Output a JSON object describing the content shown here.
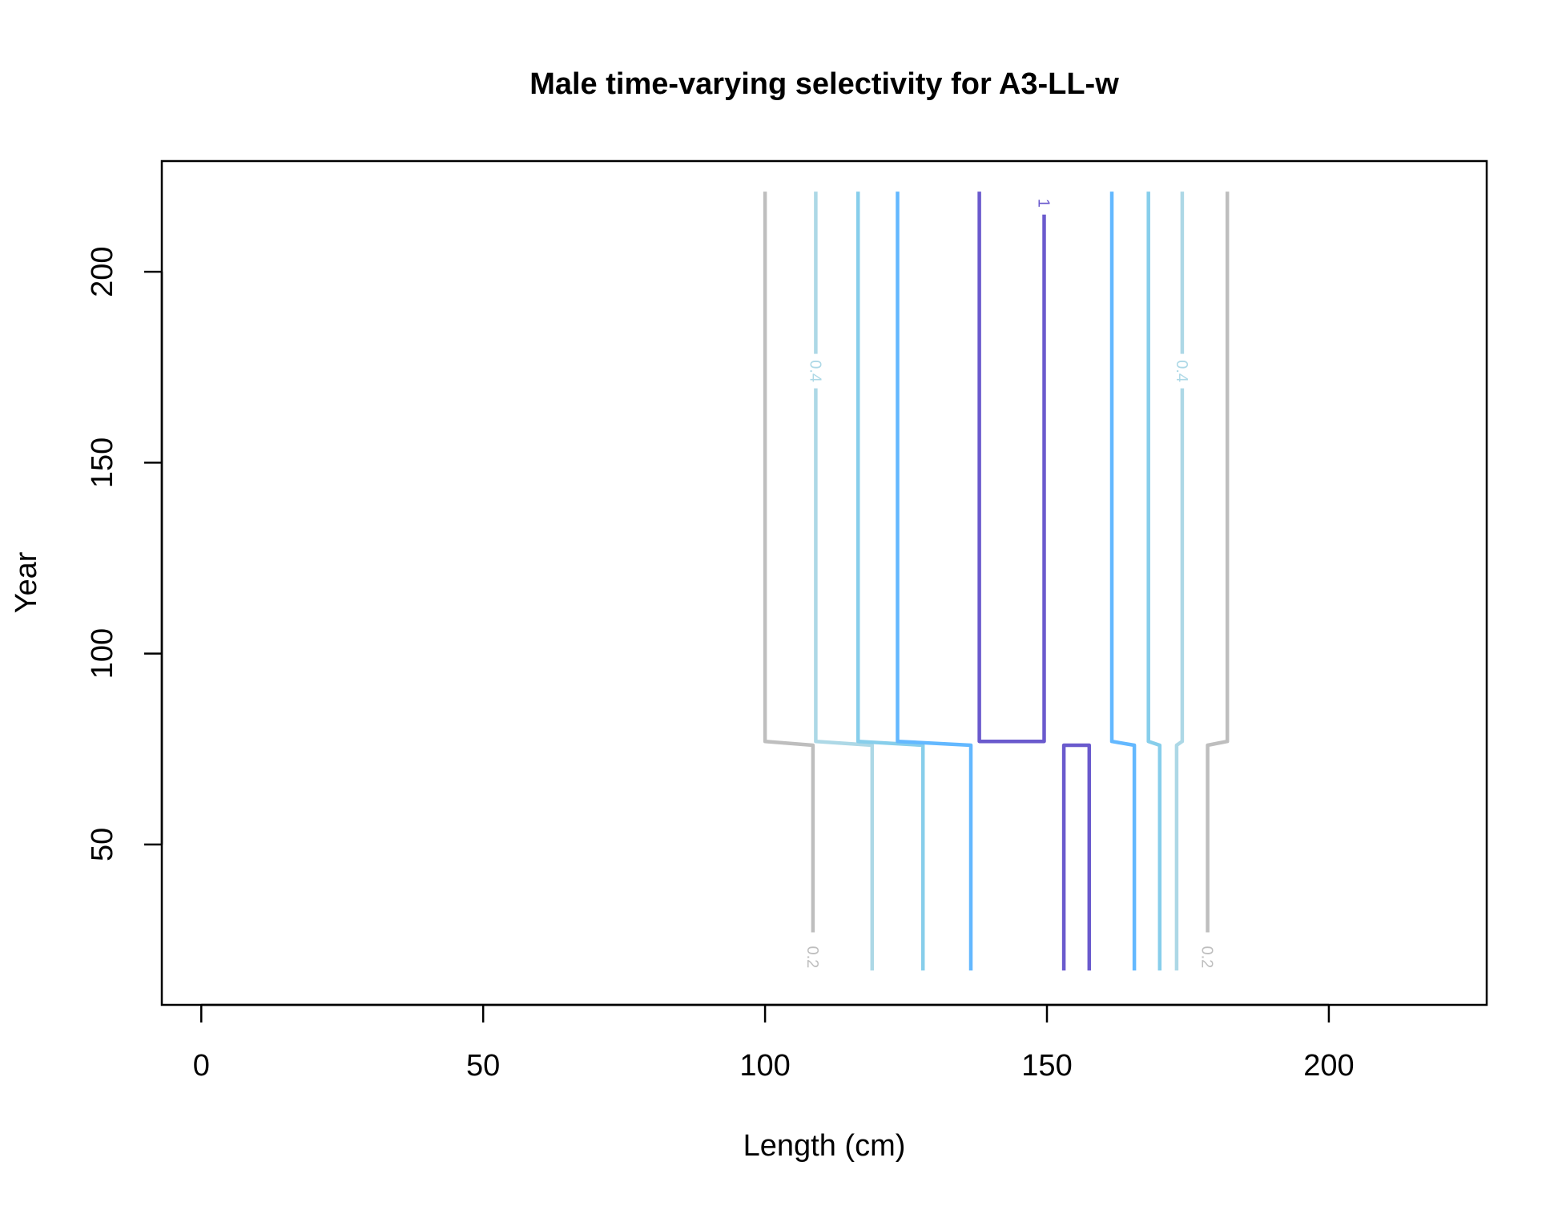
{
  "chart_data": {
    "type": "contour",
    "title": "Male time-varying selectivity for A3-LL-w",
    "xlabel": "Length (cm)",
    "ylabel": "Year",
    "xlim": [
      -7,
      228
    ],
    "ylim": [
      8,
      229
    ],
    "x_ticks": [
      0,
      50,
      100,
      150,
      200
    ],
    "y_ticks": [
      50,
      100,
      150,
      200
    ],
    "x_tick_labels": [
      "0",
      "50",
      "100",
      "150",
      "200"
    ],
    "y_tick_labels": [
      "50",
      "100",
      "150",
      "200"
    ],
    "grid": false,
    "legend": "none",
    "series": [
      {
        "level": 0.2,
        "color": "#bebebe",
        "label": "0.2",
        "x": [
          100,
          100,
          108.5,
          108.5
        ],
        "y": [
          221,
          77,
          76,
          27
        ]
      },
      {
        "level": 0.2,
        "color": "#bebebe",
        "label": "0.2",
        "x": [
          182,
          182,
          178.5,
          178.5
        ],
        "y": [
          221,
          77,
          76,
          27
        ]
      },
      {
        "level": 0.4,
        "color": "#add8e6",
        "label": "0.4",
        "x": [
          109,
          109,
          119,
          119
        ],
        "y": [
          221,
          77,
          76,
          17
        ]
      },
      {
        "level": 0.4,
        "color": "#add8e6",
        "label": "0.4",
        "x": [
          174,
          174,
          173,
          173
        ],
        "y": [
          221,
          77,
          76,
          17
        ]
      },
      {
        "level": 0.6,
        "color": "#87ceeb",
        "x": [
          116.5,
          116.5,
          128,
          128
        ],
        "y": [
          221,
          77,
          76,
          17
        ]
      },
      {
        "level": 0.6,
        "color": "#87ceeb",
        "x": [
          168,
          168,
          170,
          170
        ],
        "y": [
          221,
          77,
          76,
          17
        ]
      },
      {
        "level": 0.8,
        "color": "#63b8ff",
        "x": [
          123.5,
          123.5,
          136.5,
          136.5
        ],
        "y": [
          221,
          77,
          76,
          17
        ]
      },
      {
        "level": 0.8,
        "color": "#63b8ff",
        "x": [
          161.5,
          161.5,
          165.5,
          165.5
        ],
        "y": [
          221,
          77,
          76,
          17
        ]
      },
      {
        "level": 1,
        "color": "#6a5acd",
        "label": "1",
        "x": [
          138,
          138,
          149.5,
          149.5
        ],
        "y": [
          221,
          77,
          77,
          215
        ]
      },
      {
        "level": 1,
        "color": "#6a5acd",
        "x": [
          153,
          153,
          157.5,
          157.5
        ],
        "y": [
          17,
          76,
          76,
          17
        ]
      }
    ],
    "contour_labels": [
      {
        "text": "0.4",
        "x": 109,
        "y": 174,
        "color": "#add8e6"
      },
      {
        "text": "0.4",
        "x": 174,
        "y": 174,
        "color": "#add8e6"
      },
      {
        "text": "0.2",
        "x": 108.5,
        "y": 20.5,
        "color": "#bebebe"
      },
      {
        "text": "0.2",
        "x": 178.5,
        "y": 20.5,
        "color": "#bebebe"
      },
      {
        "text": "1",
        "x": 149.5,
        "y": 218,
        "color": "#6a5acd"
      }
    ]
  }
}
